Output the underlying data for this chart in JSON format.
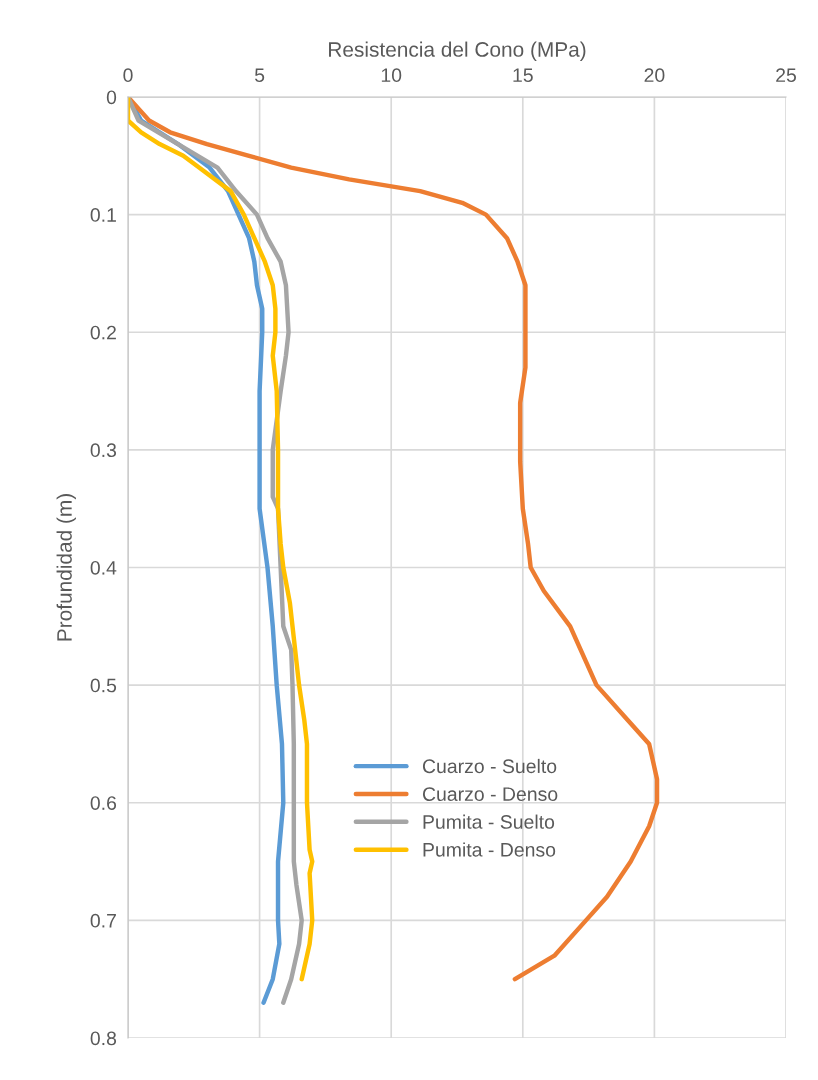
{
  "chart_data": {
    "type": "line",
    "xlabel": "Resistencia del Cono (MPa)",
    "ylabel": "Profundidad (m)",
    "xlim": [
      0,
      25
    ],
    "xticks": [
      0,
      5,
      10,
      15,
      20,
      25
    ],
    "ylim": [
      0.8,
      0
    ],
    "yticks": [
      0,
      0.1,
      0.2,
      0.3,
      0.4,
      0.5,
      0.6,
      0.7,
      0.8
    ],
    "grid": true,
    "legend": "bottom",
    "marker": "none",
    "line_style": "solid",
    "series": [
      {
        "name": "Cuarzo - Suelto",
        "color": "#5b9bd5",
        "x": [
          0,
          0.5,
          1.9,
          3.1,
          3.8,
          4.2,
          4.6,
          4.8,
          4.9,
          5.1,
          5.1,
          5.0,
          5.0,
          5.0,
          5.3,
          5.5,
          5.65,
          5.85,
          5.9,
          5.7,
          5.7,
          5.75,
          5.5,
          5.15
        ],
        "values": [
          0,
          0.02,
          0.04,
          0.06,
          0.08,
          0.1,
          0.12,
          0.14,
          0.16,
          0.18,
          0.2,
          0.25,
          0.3,
          0.35,
          0.4,
          0.45,
          0.5,
          0.55,
          0.6,
          0.65,
          0.7,
          0.72,
          0.75,
          0.77
        ]
      },
      {
        "name": "Cuarzo - Denso",
        "color": "#ed7d31",
        "x": [
          0,
          0.8,
          1.6,
          3.0,
          4.6,
          6.2,
          8.4,
          11.1,
          12.7,
          13.6,
          14.4,
          14.8,
          15.1,
          15.1,
          15.1,
          14.9,
          14.9,
          15.0,
          15.2,
          15.3,
          15.8,
          16.8,
          17.4,
          17.8,
          19.0,
          19.8,
          20.1,
          20.1,
          19.8,
          19.1,
          18.2,
          17.4,
          16.2,
          14.7
        ],
        "values": [
          0,
          0.02,
          0.03,
          0.04,
          0.05,
          0.06,
          0.07,
          0.08,
          0.09,
          0.1,
          0.12,
          0.14,
          0.16,
          0.2,
          0.23,
          0.26,
          0.31,
          0.35,
          0.38,
          0.4,
          0.42,
          0.45,
          0.48,
          0.5,
          0.53,
          0.55,
          0.58,
          0.6,
          0.62,
          0.65,
          0.68,
          0.7,
          0.73,
          0.75
        ]
      },
      {
        "name": "Pumita - Suelto",
        "color": "#a5a5a5",
        "x": [
          0,
          0.4,
          1.9,
          3.4,
          4.1,
          4.9,
          5.3,
          5.8,
          6.0,
          6.1,
          6.0,
          5.8,
          5.5,
          5.5,
          5.7,
          5.8,
          5.9,
          6.2,
          6.25,
          6.3,
          6.3,
          6.3,
          6.4,
          6.6,
          6.5,
          6.2,
          5.9
        ],
        "values": [
          0,
          0.02,
          0.04,
          0.06,
          0.08,
          0.1,
          0.12,
          0.14,
          0.16,
          0.2,
          0.22,
          0.25,
          0.3,
          0.34,
          0.35,
          0.4,
          0.45,
          0.47,
          0.5,
          0.55,
          0.6,
          0.65,
          0.67,
          0.7,
          0.72,
          0.75,
          0.77
        ]
      },
      {
        "name": "Pumita - Denso",
        "color": "#ffc000",
        "x": [
          0,
          0.0,
          0.5,
          1.2,
          2.1,
          2.7,
          3.9,
          4.4,
          4.8,
          5.2,
          5.5,
          5.6,
          5.6,
          5.5,
          5.65,
          5.7,
          5.7,
          5.8,
          5.9,
          6.15,
          6.3,
          6.5,
          6.7,
          6.8,
          6.8,
          6.9,
          7.0,
          6.9,
          7.0,
          6.9,
          6.6
        ],
        "values": [
          0,
          0.02,
          0.03,
          0.04,
          0.05,
          0.06,
          0.08,
          0.1,
          0.12,
          0.14,
          0.16,
          0.18,
          0.2,
          0.22,
          0.25,
          0.3,
          0.35,
          0.38,
          0.4,
          0.43,
          0.46,
          0.5,
          0.53,
          0.55,
          0.6,
          0.64,
          0.65,
          0.66,
          0.7,
          0.72,
          0.75
        ]
      }
    ]
  }
}
